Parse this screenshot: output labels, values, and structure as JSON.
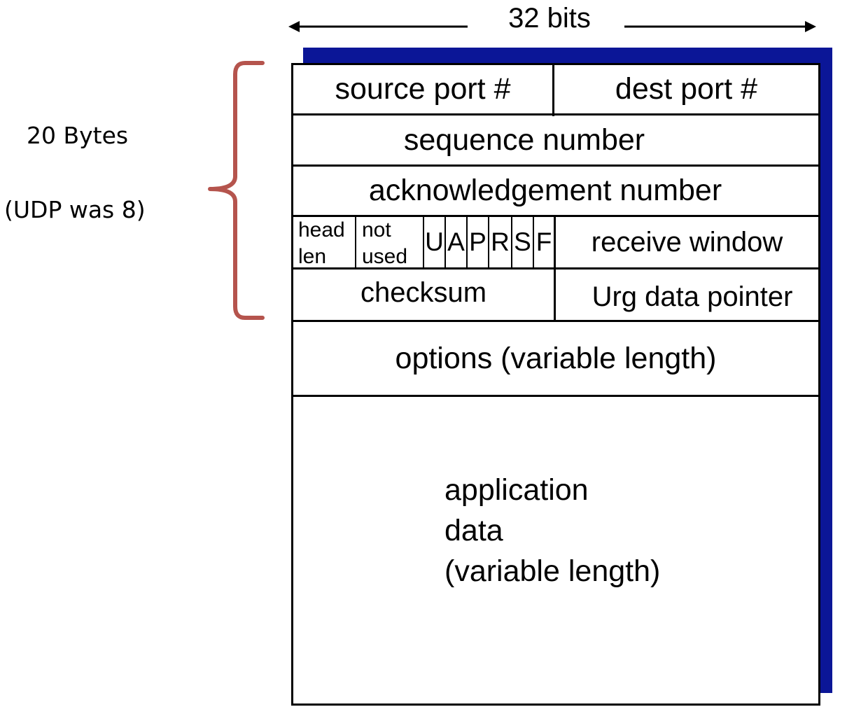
{
  "width_annotation": "32 bits",
  "header_size": "20 Bytes",
  "udp_note": "(UDP was 8)",
  "fields": {
    "source_port": "source port #",
    "dest_port": "dest port #",
    "sequence_number": "sequence number",
    "acknowledgement_number": "acknowledgement number",
    "head_len_line1": "head",
    "head_len_line2": "len",
    "not_used_line1": "not",
    "not_used_line2": "used",
    "flags": [
      "U",
      "A",
      "P",
      "R",
      "S",
      "F"
    ],
    "receive_window": "receive window",
    "checksum": "checksum",
    "urg_data_pointer": "Urg data pointer",
    "options": "options (variable length)",
    "application_data": [
      "application",
      "data",
      "(variable length)"
    ]
  },
  "colors": {
    "shadow": "#0b1697",
    "brace": "#b5544d",
    "lines": "#000000"
  }
}
